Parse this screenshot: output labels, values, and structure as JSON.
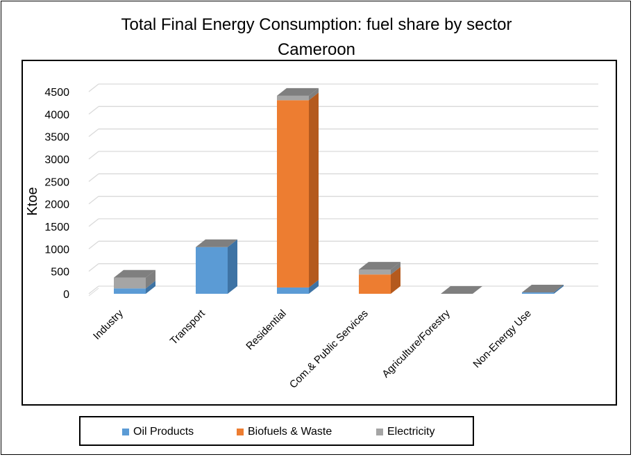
{
  "chart_data": {
    "type": "bar",
    "stacked": true,
    "style": "3d",
    "title": "Total Final Energy Consumption: fuel share by sector",
    "subtitle": "Cameroon",
    "xlabel": "",
    "ylabel": "Ktoe",
    "ylim": [
      0,
      4500
    ],
    "yticks": [
      0,
      500,
      1000,
      1500,
      2000,
      2500,
      3000,
      3500,
      4000,
      4500
    ],
    "grid": true,
    "legend_position": "bottom",
    "categories": [
      "Industry",
      "Transport",
      "Residential",
      "Com.& Public Services",
      "Agriculture/Forestry",
      "Non-Energy Use"
    ],
    "series": [
      {
        "name": "Oil Products",
        "color": "#5B9BD5",
        "side": "#3E73A4",
        "values": [
          120,
          1040,
          140,
          0,
          0,
          30
        ]
      },
      {
        "name": "Biofuels & Waste",
        "color": "#ED7D31",
        "side": "#B45A1E",
        "values": [
          0,
          0,
          4170,
          430,
          0,
          0
        ]
      },
      {
        "name": "Electricity",
        "color": "#A5A5A5",
        "side": "#7F7F7F",
        "values": [
          240,
          0,
          100,
          110,
          0,
          0
        ]
      }
    ],
    "top_color": "#7F7F7F"
  }
}
